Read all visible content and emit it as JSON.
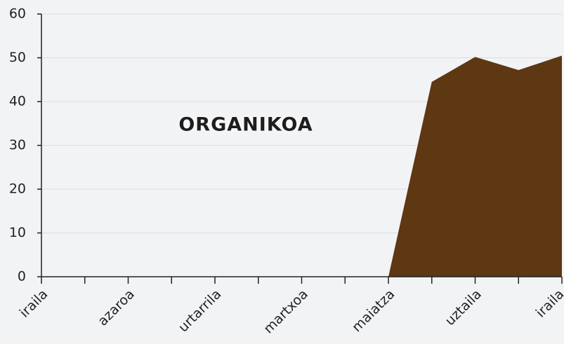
{
  "chart_data": {
    "type": "area",
    "title": "ORGANIKOA",
    "categories": [
      "iraila",
      null,
      "azaroa",
      null,
      "urtarrila",
      null,
      "martxoa",
      null,
      "maiatza",
      null,
      "uztaila",
      null,
      "iraila"
    ],
    "values": [
      0,
      0,
      0,
      0,
      0,
      0,
      0,
      0,
      0,
      44.5,
      50.2,
      47.2,
      50.5
    ],
    "color": "#5e3713",
    "ylim": [
      0,
      60
    ],
    "yticks": [
      0,
      10,
      20,
      30,
      40,
      50,
      60
    ],
    "grid": true
  }
}
